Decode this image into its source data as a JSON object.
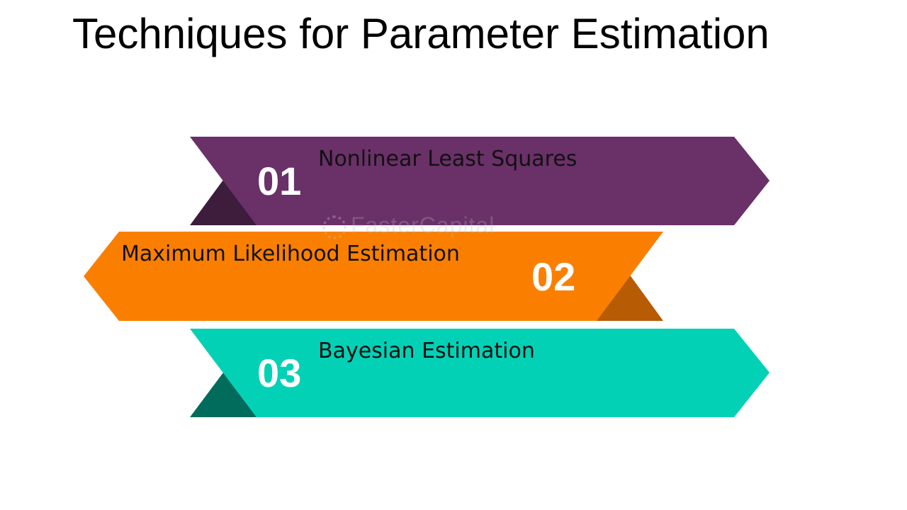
{
  "title": "Techniques for Parameter Estimation",
  "watermark": "FasterCapital",
  "items": [
    {
      "number": "01",
      "label": "Nonlinear Least Squares",
      "direction": "right",
      "color": "#6a3068",
      "fold_color": "#3d1c3c"
    },
    {
      "number": "02",
      "label": "Maximum Likelihood Estimation",
      "direction": "left",
      "color": "#fa7f00",
      "fold_color": "#b85b05"
    },
    {
      "number": "03",
      "label": "Bayesian Estimation",
      "direction": "right",
      "color": "#02d1b6",
      "fold_color": "#016c5c"
    }
  ]
}
